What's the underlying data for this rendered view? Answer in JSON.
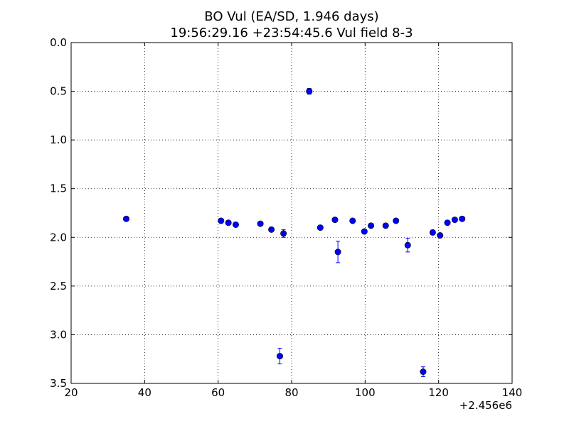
{
  "chart_data": {
    "type": "scatter",
    "title_lines": [
      "BO Vul (EA/SD, 1.946 days)",
      "19:56:29.16 +23:54:45.6 Vul field 8-3"
    ],
    "xlabel": "",
    "ylabel": "",
    "x_offset_label": "+2.456e6",
    "xlim": [
      20,
      140
    ],
    "ylim": [
      0.0,
      3.5
    ],
    "y_inverted": true,
    "grid": true,
    "legend": "none",
    "x_ticks": [
      20,
      40,
      60,
      80,
      100,
      120,
      140
    ],
    "x_tick_labels": [
      "20",
      "40",
      "60",
      "80",
      "100",
      "120",
      "140"
    ],
    "y_ticks": [
      0.0,
      0.5,
      1.0,
      1.5,
      2.0,
      2.5,
      3.0,
      3.5
    ],
    "y_tick_labels": [
      "0.0",
      "0.5",
      "1.0",
      "1.5",
      "2.0",
      "2.5",
      "3.0",
      "3.5"
    ],
    "marker_color": "#0000ff",
    "errorbar_color": "#0000ff",
    "points": [
      {
        "x": 35.0,
        "y": 1.81,
        "err": 0.01
      },
      {
        "x": 60.8,
        "y": 1.83,
        "err": 0.01
      },
      {
        "x": 62.8,
        "y": 1.85,
        "err": 0.01
      },
      {
        "x": 64.8,
        "y": 1.87,
        "err": 0.01
      },
      {
        "x": 71.5,
        "y": 1.86,
        "err": 0.01
      },
      {
        "x": 74.5,
        "y": 1.92,
        "err": 0.01
      },
      {
        "x": 76.8,
        "y": 3.22,
        "err": 0.08
      },
      {
        "x": 77.8,
        "y": 1.96,
        "err": 0.04
      },
      {
        "x": 84.8,
        "y": 0.5,
        "err": 0.03
      },
      {
        "x": 87.8,
        "y": 1.9,
        "err": 0.01
      },
      {
        "x": 91.8,
        "y": 1.82,
        "err": 0.01
      },
      {
        "x": 92.6,
        "y": 2.15,
        "err": 0.11
      },
      {
        "x": 96.6,
        "y": 1.83,
        "err": 0.01
      },
      {
        "x": 99.8,
        "y": 1.94,
        "err": 0.01
      },
      {
        "x": 101.6,
        "y": 1.88,
        "err": 0.01
      },
      {
        "x": 105.6,
        "y": 1.88,
        "err": 0.01
      },
      {
        "x": 108.4,
        "y": 1.83,
        "err": 0.02
      },
      {
        "x": 111.6,
        "y": 2.08,
        "err": 0.07
      },
      {
        "x": 115.8,
        "y": 3.38,
        "err": 0.05
      },
      {
        "x": 118.4,
        "y": 1.95,
        "err": 0.01
      },
      {
        "x": 120.4,
        "y": 1.98,
        "err": 0.01
      },
      {
        "x": 122.4,
        "y": 1.85,
        "err": 0.01
      },
      {
        "x": 124.4,
        "y": 1.82,
        "err": 0.01
      },
      {
        "x": 126.4,
        "y": 1.81,
        "err": 0.01
      }
    ]
  }
}
